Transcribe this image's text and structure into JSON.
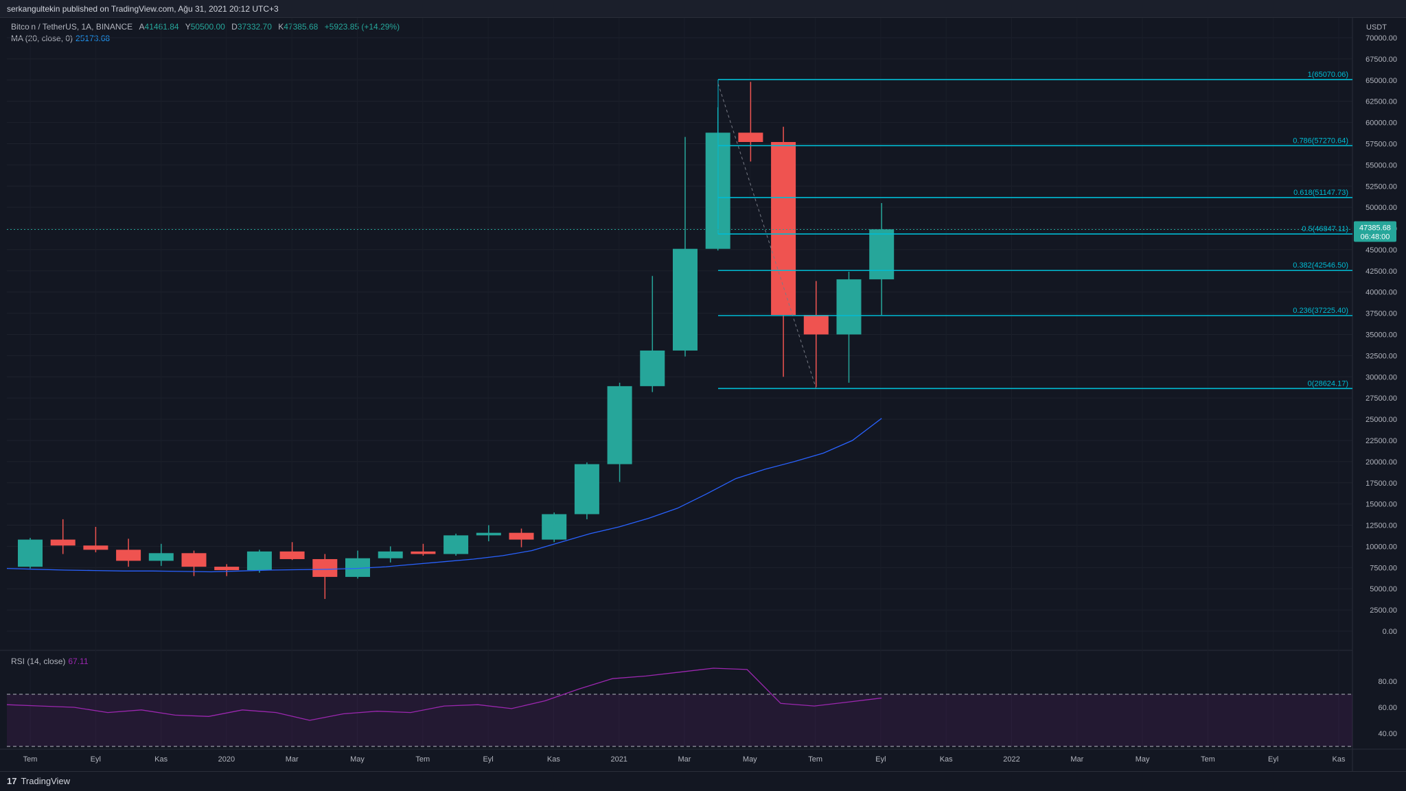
{
  "header": {
    "published_text": "serkangultekin published on TradingView.com, Ağu 31, 2021 20:12 UTC+3"
  },
  "legend": {
    "symbol": "Bitcoin / TetherUS, 1A, BINANCE",
    "open_label": "A",
    "open": "41461.84",
    "high_label": "Y",
    "high": "50500.00",
    "low_label": "D",
    "low": "37332.70",
    "close_label": "K",
    "close": "47385.68",
    "change": "+5923.85 (+14.29%)",
    "ma_label": "MA (20, close, 0)",
    "ma_value": "25173.68"
  },
  "rsi_legend": {
    "label": "RSI (14, close)",
    "value": "67.11"
  },
  "price_axis_unit": "USDT",
  "last_price_tag": {
    "price": "47385.68",
    "countdown": "06:48:00"
  },
  "footer": {
    "brand": "TradingView",
    "logo_glyph": "17"
  },
  "colors": {
    "up": "#26a69a",
    "down": "#ef5350",
    "ma": "#2962ff",
    "fib": "#00bcd4",
    "rsi": "#9c27b0"
  },
  "chart_data": {
    "type": "candlestick",
    "y_unit": "USDT",
    "ylim": [
      0,
      70000
    ],
    "y_ticks": [
      "70000.00",
      "67500.00",
      "65000.00",
      "62500.00",
      "60000.00",
      "57500.00",
      "55000.00",
      "52500.00",
      "50000.00",
      "47500.00",
      "45000.00",
      "42500.00",
      "40000.00",
      "37500.00",
      "35000.00",
      "32500.00",
      "30000.00",
      "27500.00",
      "25000.00",
      "22500.00",
      "20000.00",
      "17500.00",
      "15000.00",
      "12500.00",
      "10000.00",
      "7500.00",
      "5000.00",
      "2500.00",
      "0.00"
    ],
    "x_ticks": [
      "Tem",
      "Eyl",
      "Kas",
      "2020",
      "Mar",
      "May",
      "Tem",
      "Eyl",
      "Kas",
      "2021",
      "Mar",
      "May",
      "Tem",
      "Eyl",
      "Kas",
      "2022",
      "Mar",
      "May",
      "Tem",
      "Eyl",
      "Kas"
    ],
    "candles": [
      {
        "o": 7600,
        "h": 11000,
        "l": 7400,
        "c": 10800
      },
      {
        "o": 10800,
        "h": 13200,
        "l": 9100,
        "c": 10100
      },
      {
        "o": 10100,
        "h": 12300,
        "l": 9300,
        "c": 9600
      },
      {
        "o": 9600,
        "h": 10900,
        "l": 7600,
        "c": 8300
      },
      {
        "o": 8300,
        "h": 10300,
        "l": 7700,
        "c": 9200
      },
      {
        "o": 9200,
        "h": 9500,
        "l": 6500,
        "c": 7600
      },
      {
        "o": 7600,
        "h": 7900,
        "l": 6500,
        "c": 7200
      },
      {
        "o": 7200,
        "h": 9600,
        "l": 6900,
        "c": 9400
      },
      {
        "o": 9400,
        "h": 10500,
        "l": 8400,
        "c": 8500
      },
      {
        "o": 8500,
        "h": 9100,
        "l": 3800,
        "c": 6400
      },
      {
        "o": 6400,
        "h": 9500,
        "l": 6200,
        "c": 8600
      },
      {
        "o": 8600,
        "h": 10000,
        "l": 8100,
        "c": 9400
      },
      {
        "o": 9400,
        "h": 10300,
        "l": 8900,
        "c": 9100
      },
      {
        "o": 9100,
        "h": 11500,
        "l": 8900,
        "c": 11300
      },
      {
        "o": 11300,
        "h": 12500,
        "l": 10600,
        "c": 11600
      },
      {
        "o": 11600,
        "h": 12100,
        "l": 9900,
        "c": 10800
      },
      {
        "o": 10800,
        "h": 14000,
        "l": 10500,
        "c": 13800
      },
      {
        "o": 13800,
        "h": 19900,
        "l": 13200,
        "c": 19700
      },
      {
        "o": 19700,
        "h": 29300,
        "l": 17600,
        "c": 28900
      },
      {
        "o": 28900,
        "h": 41900,
        "l": 28200,
        "c": 33100
      },
      {
        "o": 33100,
        "h": 58300,
        "l": 32400,
        "c": 45100
      },
      {
        "o": 45100,
        "h": 61800,
        "l": 44900,
        "c": 58800
      },
      {
        "o": 58800,
        "h": 64800,
        "l": 55400,
        "c": 57700
      },
      {
        "o": 57700,
        "h": 59500,
        "l": 30000,
        "c": 37300
      },
      {
        "o": 37300,
        "h": 41300,
        "l": 28800,
        "c": 35000
      },
      {
        "o": 35000,
        "h": 42400,
        "l": 29300,
        "c": 41500
      },
      {
        "o": 41500,
        "h": 50500,
        "l": 37300,
        "c": 47400
      }
    ],
    "ma_20": [
      7400,
      7300,
      7200,
      7150,
      7100,
      7100,
      7050,
      7000,
      7100,
      7200,
      7250,
      7300,
      7400,
      7600,
      7900,
      8200,
      8500,
      8900,
      9500,
      10500,
      11500,
      12300,
      13300,
      14500,
      16200,
      18000,
      19100,
      20000,
      21000,
      22500,
      25100
    ],
    "fib_levels": [
      {
        "label": "1(65070.06)",
        "value": 65070.06
      },
      {
        "label": "0.786(57270.64)",
        "value": 57270.64
      },
      {
        "label": "0.618(51147.73)",
        "value": 51147.73
      },
      {
        "label": "0.5(46847.11)",
        "value": 46847.11
      },
      {
        "label": "0.382(42546.50)",
        "value": 42546.5
      },
      {
        "label": "0.236(37225.40)",
        "value": 37225.4
      },
      {
        "label": "0(28624.17)",
        "value": 28624.17
      }
    ],
    "rsi": {
      "ylim": [
        30,
        100
      ],
      "y_ticks": [
        "80.00",
        "60.00",
        "40.00"
      ],
      "bands": [
        70,
        30
      ],
      "values": [
        62,
        61,
        60,
        56,
        58,
        54,
        53,
        58,
        56,
        50,
        55,
        57,
        56,
        61,
        62,
        59,
        65,
        74,
        82,
        84,
        87,
        90,
        89,
        63,
        61,
        64,
        67.11
      ]
    }
  }
}
